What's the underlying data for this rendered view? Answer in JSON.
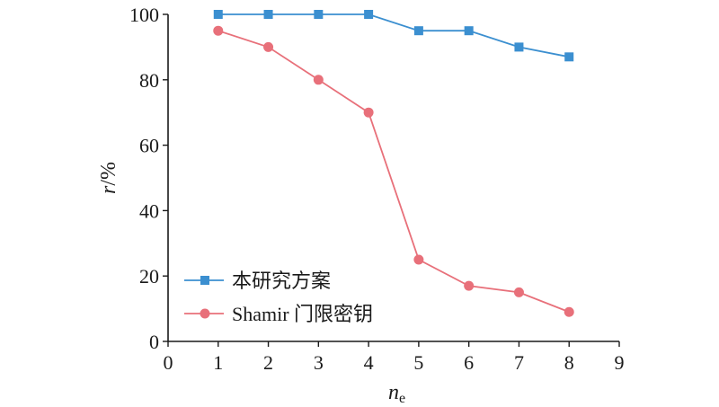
{
  "chart_data": {
    "type": "line",
    "title": "",
    "xlabel": {
      "main": "n",
      "sub": "e"
    },
    "ylabel": {
      "main": "r",
      "rest": "/%"
    },
    "xlim": [
      0,
      9
    ],
    "ylim": [
      0,
      100
    ],
    "xticks": [
      0,
      1,
      2,
      3,
      4,
      5,
      6,
      7,
      8,
      9
    ],
    "yticks": [
      0,
      20,
      40,
      60,
      80,
      100
    ],
    "grid": false,
    "legend_position": "bottom-left",
    "x": [
      1,
      2,
      3,
      4,
      5,
      6,
      7,
      8
    ],
    "series": [
      {
        "name": "本研究方案",
        "values": [
          100,
          100,
          100,
          100,
          95,
          95,
          90,
          87
        ],
        "color": "#3b8fd0",
        "marker": "square"
      },
      {
        "name": "Shamir 门限密钥",
        "values": [
          95,
          90,
          80,
          70,
          25,
          17,
          15,
          9
        ],
        "color": "#e8707a",
        "marker": "circle"
      }
    ]
  }
}
